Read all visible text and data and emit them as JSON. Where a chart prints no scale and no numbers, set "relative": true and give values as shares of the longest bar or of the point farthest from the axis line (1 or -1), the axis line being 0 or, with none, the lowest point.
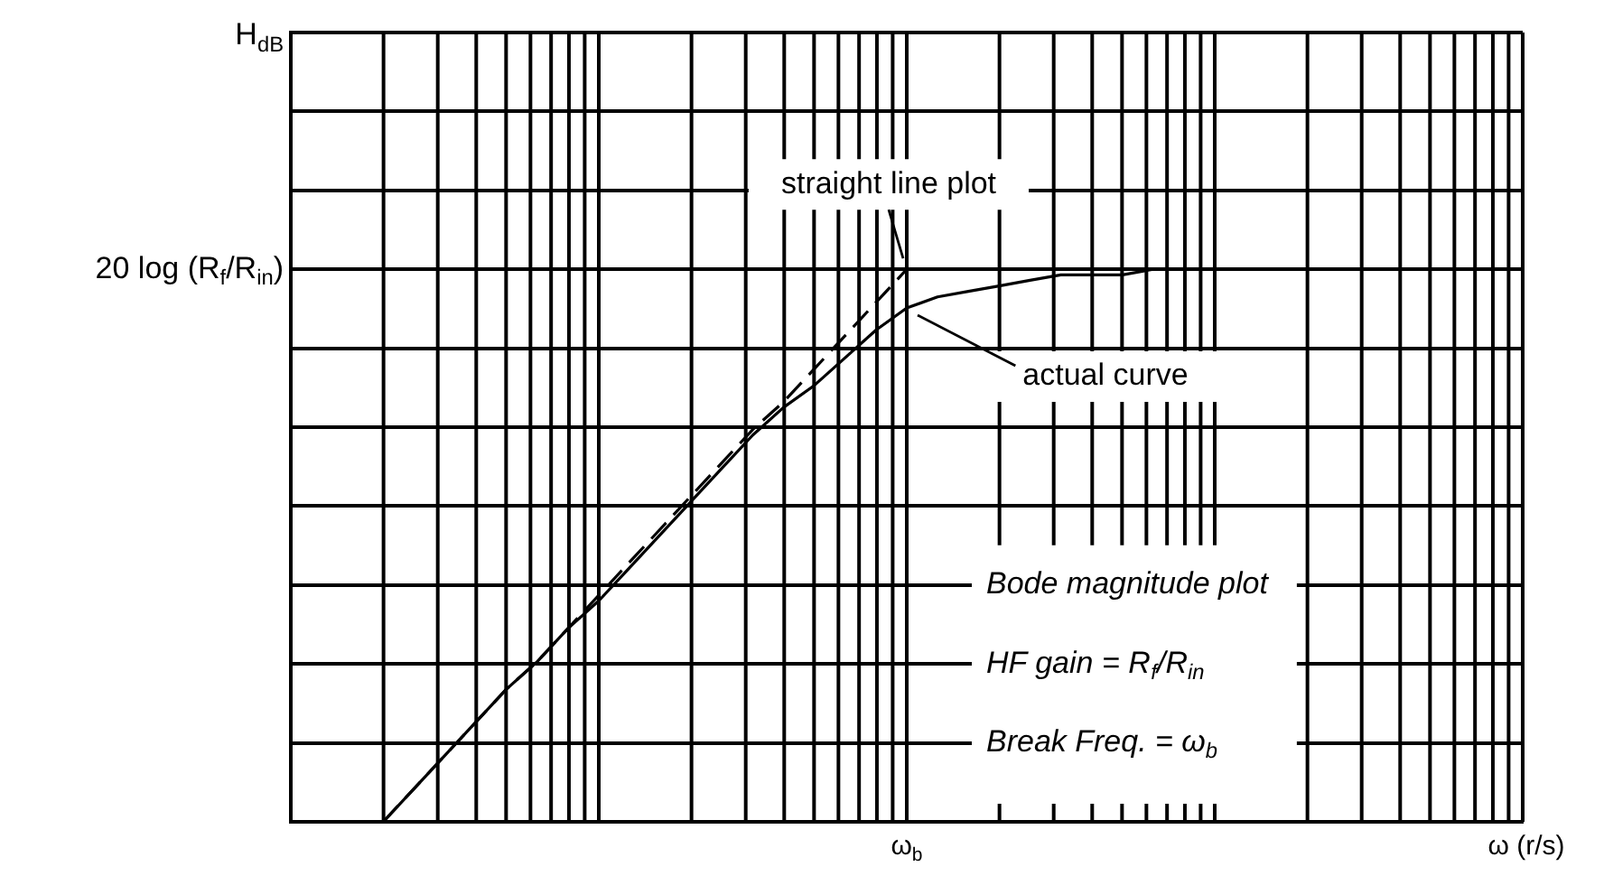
{
  "chart_data": {
    "type": "line",
    "relative": true,
    "grid": true,
    "legend": false,
    "marker": "none",
    "xlabel": "ω (r/s)",
    "categories": [
      null,
      null,
      null,
      null,
      null,
      null,
      null,
      null,
      null,
      null,
      null,
      null,
      null,
      null,
      null,
      null,
      null,
      null,
      null,
      null,
      null,
      null,
      null,
      null,
      null,
      null,
      null,
      null,
      null,
      null,
      null,
      null,
      null,
      null,
      null,
      null,
      null,
      null,
      null,
      null,
      null
    ],
    "series": [
      {
        "name": "straight line plot",
        "color": "#000000",
        "line_style": "dashed",
        "values": [
          null,
          null,
          null,
          0,
          0.06,
          0.12,
          0.18,
          0.24,
          0.29,
          0.35,
          0.41,
          0.47,
          0.53,
          0.59,
          0.65,
          0.71,
          0.76,
          0.82,
          0.88,
          0.94,
          1,
          null,
          null,
          null,
          null,
          null,
          null,
          null,
          null,
          null,
          null,
          null,
          null,
          null,
          null,
          null,
          null,
          null,
          null,
          null,
          null
        ]
      },
      {
        "name": "actual curve",
        "color": "#000000",
        "line_style": "solid",
        "values": [
          null,
          null,
          null,
          0,
          0.06,
          0.12,
          0.18,
          0.24,
          0.29,
          0.35,
          0.4,
          0.46,
          0.52,
          0.58,
          0.64,
          0.7,
          0.75,
          0.79,
          0.84,
          0.89,
          0.93,
          0.95,
          0.96,
          0.97,
          0.98,
          0.99,
          0.99,
          0.99,
          1,
          1,
          1,
          null,
          null,
          null,
          null,
          null,
          null,
          null,
          null,
          null,
          null
        ]
      }
    ],
    "annotations": [
      "ω$_{b}$",
      "20 log (R$_{f}$/R$_{in}$)",
      "H$_{dB}$",
      "Bode magnitude plot",
      "HF gain = R$_{f}$/R$_{in}$",
      "Break Freq. = ω$_{b}$"
    ]
  }
}
